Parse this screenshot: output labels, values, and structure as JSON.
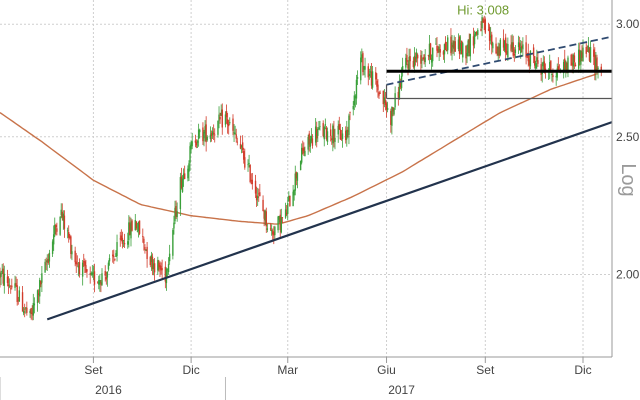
{
  "chart_data": {
    "type": "candlestick",
    "title": "",
    "y_scale": "log",
    "y_scale_label": "Log",
    "ylim": [
      1.75,
      3.12
    ],
    "xlim": [
      "2016-06-06",
      "2017-12-28"
    ],
    "y_ticks": [
      {
        "value": 2.0,
        "label": "2.00"
      },
      {
        "value": 2.5,
        "label": "2.50"
      },
      {
        "value": 3.0,
        "label": "3.00"
      }
    ],
    "x_ticks": [
      {
        "date": "2016-09-01",
        "label": "Set"
      },
      {
        "date": "2016-12-01",
        "label": "Dic"
      },
      {
        "date": "2017-03-01",
        "label": "Mar"
      },
      {
        "date": "2017-06-01",
        "label": "Giu"
      },
      {
        "date": "2017-09-01",
        "label": "Set"
      },
      {
        "date": "2017-12-01",
        "label": "Dic"
      }
    ],
    "year_labels": [
      {
        "date": "2016-09-15",
        "label": "2016"
      },
      {
        "date": "2017-06-15",
        "label": "2017"
      }
    ],
    "year_dividers": [
      "2016-06-06",
      "2017-01-02"
    ],
    "grid": true,
    "legend": "none",
    "annotation": {
      "label": "Hi: 3.008",
      "date": "2017-08-30",
      "value": 3.008
    },
    "colors": {
      "up": "#3aa03a",
      "down": "#d23b2a",
      "moving_average": "#c8734a",
      "trendline": "#22334d",
      "channel": "#2f4a70",
      "support": "#000000",
      "level": "#555555",
      "annotation": "#6f9a2f",
      "grid": "#cfcfcf"
    },
    "price_path": [
      [
        "2016-06-06",
        2.0
      ],
      [
        "2016-06-20",
        1.95
      ],
      [
        "2016-07-04",
        1.86
      ],
      [
        "2016-07-18",
        2.02
      ],
      [
        "2016-08-01",
        2.22
      ],
      [
        "2016-08-15",
        2.05
      ],
      [
        "2016-08-29",
        1.98
      ],
      [
        "2016-09-12",
        2.0
      ],
      [
        "2016-09-26",
        2.1
      ],
      [
        "2016-10-10",
        2.18
      ],
      [
        "2016-10-24",
        2.05
      ],
      [
        "2016-11-07",
        2.0
      ],
      [
        "2016-11-21",
        2.32
      ],
      [
        "2016-12-05",
        2.5
      ],
      [
        "2016-12-19",
        2.52
      ],
      [
        "2017-01-02",
        2.58
      ],
      [
        "2017-01-16",
        2.45
      ],
      [
        "2017-01-30",
        2.3
      ],
      [
        "2017-02-13",
        2.14
      ],
      [
        "2017-02-27",
        2.2
      ],
      [
        "2017-03-13",
        2.42
      ],
      [
        "2017-03-27",
        2.52
      ],
      [
        "2017-04-10",
        2.52
      ],
      [
        "2017-04-24",
        2.5
      ],
      [
        "2017-05-08",
        2.83
      ],
      [
        "2017-05-22",
        2.72
      ],
      [
        "2017-06-05",
        2.58
      ],
      [
        "2017-06-19",
        2.82
      ],
      [
        "2017-07-03",
        2.85
      ],
      [
        "2017-07-17",
        2.88
      ],
      [
        "2017-07-31",
        2.9
      ],
      [
        "2017-08-14",
        2.88
      ],
      [
        "2017-08-28",
        3.0
      ],
      [
        "2017-09-11",
        2.88
      ],
      [
        "2017-09-25",
        2.9
      ],
      [
        "2017-10-09",
        2.86
      ],
      [
        "2017-10-23",
        2.8
      ],
      [
        "2017-11-06",
        2.78
      ],
      [
        "2017-11-20",
        2.82
      ],
      [
        "2017-12-04",
        2.88
      ],
      [
        "2017-12-18",
        2.78
      ]
    ],
    "moving_average": [
      [
        "2016-06-06",
        2.6
      ],
      [
        "2016-07-15",
        2.48
      ],
      [
        "2016-09-01",
        2.33
      ],
      [
        "2016-10-15",
        2.24
      ],
      [
        "2016-12-01",
        2.2
      ],
      [
        "2017-01-15",
        2.18
      ],
      [
        "2017-02-20",
        2.17
      ],
      [
        "2017-03-20",
        2.2
      ],
      [
        "2017-05-01",
        2.27
      ],
      [
        "2017-06-15",
        2.36
      ],
      [
        "2017-08-01",
        2.48
      ],
      [
        "2017-09-15",
        2.6
      ],
      [
        "2017-11-01",
        2.7
      ],
      [
        "2017-12-15",
        2.77
      ]
    ],
    "trendline": [
      [
        "2016-07-20",
        1.86
      ],
      [
        "2017-12-28",
        2.56
      ]
    ],
    "channel_line": [
      [
        "2017-06-01",
        2.72
      ],
      [
        "2017-12-28",
        2.94
      ]
    ],
    "support_line": {
      "from": "2017-06-01",
      "to": "2017-12-28",
      "value": 2.78
    },
    "level_line": {
      "from": "2017-06-01",
      "to": "2017-12-28",
      "value": 2.66,
      "start_value": 2.72
    }
  }
}
